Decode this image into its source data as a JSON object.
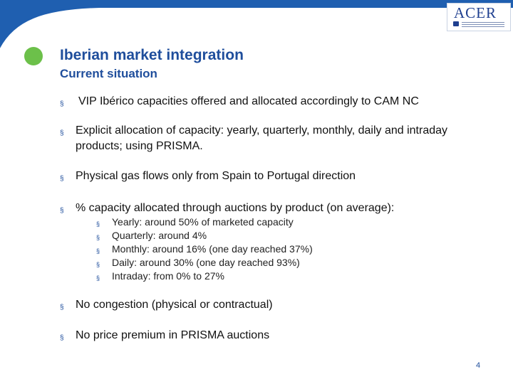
{
  "header": {
    "logo_text": "ACER",
    "title": "Iberian market integration",
    "subtitle": "Current situation"
  },
  "colors": {
    "banner": "#1f5fb0",
    "accent_dot": "#6cc04a",
    "title": "#1f4e9c"
  },
  "bullet_symbol": "§",
  "bullets": [
    "VIP Ibérico capacities offered and allocated accordingly to CAM NC",
    "Explicit allocation of capacity: yearly, quarterly, monthly, daily and intraday products; using PRISMA.",
    "Physical gas flows only from Spain to Portugal direction",
    "% capacity allocated through auctions by product (on average):",
    "No congestion (physical or contractual)",
    "No price premium in PRISMA auctions"
  ],
  "sub_bullets": [
    "Yearly: around 50% of marketed capacity",
    "Quarterly: around 4%",
    "Monthly: around 16% (one day reached  37%)",
    "Daily: around 30% (one day reached 93%)",
    "Intraday: from 0% to 27%"
  ],
  "page_number": "4"
}
